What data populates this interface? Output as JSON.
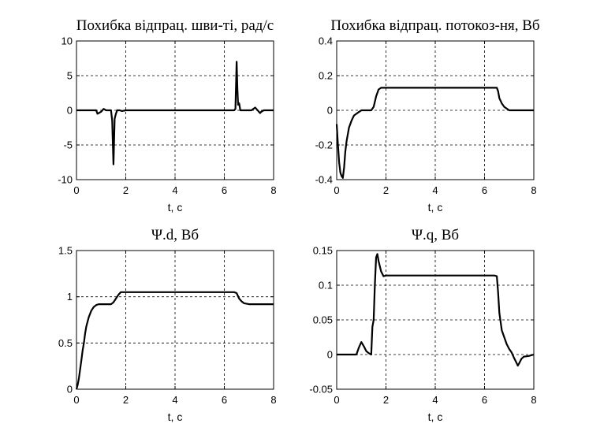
{
  "chart_data": [
    {
      "type": "line",
      "title": "Похибка відпрац. шви-ті, рад/с",
      "xlabel": "t, c",
      "ylabel": "",
      "xlim": [
        0,
        8
      ],
      "ylim": [
        -10,
        10
      ],
      "grid": true,
      "xticks": [
        "0",
        "2",
        "4",
        "6",
        "8"
      ],
      "yticks": [
        "-10",
        "-5",
        "0",
        "5",
        "10"
      ],
      "series": [
        {
          "x": [
            0,
            0.8,
            0.85,
            1.0,
            1.1,
            1.2,
            1.4,
            1.45,
            1.5,
            1.55,
            1.6,
            1.65,
            1.75,
            1.85,
            2.0,
            6.4,
            6.45,
            6.5,
            6.53,
            6.56,
            6.6,
            6.65,
            6.7,
            6.8,
            7.1,
            7.25,
            7.3,
            7.4,
            7.45,
            7.5,
            7.6,
            8.0
          ],
          "y": [
            0,
            0,
            -0.5,
            -0.2,
            0.2,
            0,
            0,
            -1.5,
            -7.8,
            -1.2,
            -0.5,
            0,
            0,
            -0.1,
            0,
            0,
            0.2,
            7.0,
            3.0,
            0.8,
            1.0,
            0,
            0,
            0,
            0,
            0.4,
            0.2,
            -0.2,
            -0.4,
            -0.2,
            0,
            0
          ]
        }
      ]
    },
    {
      "type": "line",
      "title": "Похибка відпрац. потокоз-ня, Вб",
      "xlabel": "t, c",
      "ylabel": "",
      "xlim": [
        0,
        8
      ],
      "ylim": [
        -0.4,
        0.4
      ],
      "grid": true,
      "xticks": [
        "0",
        "2",
        "4",
        "6",
        "8"
      ],
      "yticks": [
        "-0.4",
        "-0.2",
        "0",
        "0.2",
        "0.4"
      ],
      "series": [
        {
          "x": [
            0,
            0.05,
            0.1,
            0.15,
            0.2,
            0.25,
            0.3,
            0.35,
            0.4,
            0.5,
            0.6,
            0.7,
            0.8,
            0.9,
            1.0,
            1.2,
            1.4,
            1.5,
            1.6,
            1.7,
            1.8,
            1.9,
            2.0,
            6.4,
            6.5,
            6.55,
            6.6,
            6.7,
            6.8,
            6.9,
            7.0,
            8.0
          ],
          "y": [
            -0.08,
            -0.2,
            -0.3,
            -0.36,
            -0.38,
            -0.39,
            -0.33,
            -0.24,
            -0.18,
            -0.1,
            -0.06,
            -0.03,
            -0.02,
            -0.01,
            0,
            0,
            0,
            0.02,
            0.08,
            0.12,
            0.13,
            0.13,
            0.13,
            0.13,
            0.13,
            0.11,
            0.07,
            0.04,
            0.02,
            0.01,
            0,
            0
          ]
        }
      ]
    },
    {
      "type": "line",
      "title": "Ψ.d, Вб",
      "xlabel": "t, c",
      "ylabel": "",
      "xlim": [
        0,
        8
      ],
      "ylim": [
        0,
        1.5
      ],
      "grid": true,
      "xticks": [
        "0",
        "2",
        "4",
        "6",
        "8"
      ],
      "yticks": [
        "0",
        "0.5",
        "1",
        "1.5"
      ],
      "series": [
        {
          "x": [
            0,
            0.05,
            0.1,
            0.15,
            0.2,
            0.25,
            0.3,
            0.35,
            0.4,
            0.5,
            0.6,
            0.7,
            0.8,
            0.9,
            1.0,
            1.2,
            1.4,
            1.5,
            1.6,
            1.7,
            1.8,
            1.9,
            2.0,
            6.4,
            6.5,
            6.6,
            6.7,
            6.8,
            7.0,
            8.0
          ],
          "y": [
            0,
            0.05,
            0.12,
            0.22,
            0.32,
            0.42,
            0.5,
            0.6,
            0.68,
            0.78,
            0.85,
            0.89,
            0.91,
            0.92,
            0.92,
            0.92,
            0.92,
            0.94,
            0.98,
            1.02,
            1.05,
            1.05,
            1.05,
            1.05,
            1.04,
            0.98,
            0.95,
            0.93,
            0.92,
            0.92
          ]
        }
      ]
    },
    {
      "type": "line",
      "title": "Ψ.q, Вб",
      "xlabel": "t, c",
      "ylabel": "",
      "xlim": [
        0,
        8
      ],
      "ylim": [
        -0.05,
        0.15
      ],
      "grid": true,
      "xticks": [
        "0",
        "2",
        "4",
        "6",
        "8"
      ],
      "yticks": [
        "-0.05",
        "0",
        "0.05",
        "0.1",
        "0.15"
      ],
      "series": [
        {
          "x": [
            0,
            0.8,
            0.9,
            1.0,
            1.1,
            1.2,
            1.3,
            1.4,
            1.45,
            1.5,
            1.55,
            1.6,
            1.65,
            1.7,
            1.8,
            1.9,
            2.0,
            6.4,
            6.5,
            6.55,
            6.6,
            6.7,
            6.8,
            6.9,
            7.0,
            7.1,
            7.2,
            7.3,
            7.35,
            7.4,
            7.5,
            7.6,
            7.8,
            8.0
          ],
          "y": [
            0,
            0,
            0.01,
            0.018,
            0.012,
            0.005,
            0.002,
            0,
            0.04,
            0.05,
            0.1,
            0.14,
            0.145,
            0.135,
            0.12,
            0.113,
            0.114,
            0.114,
            0.113,
            0.09,
            0.06,
            0.035,
            0.025,
            0.015,
            0.008,
            0.003,
            -0.005,
            -0.012,
            -0.016,
            -0.013,
            -0.006,
            -0.003,
            -0.002,
            0
          ]
        }
      ]
    }
  ]
}
